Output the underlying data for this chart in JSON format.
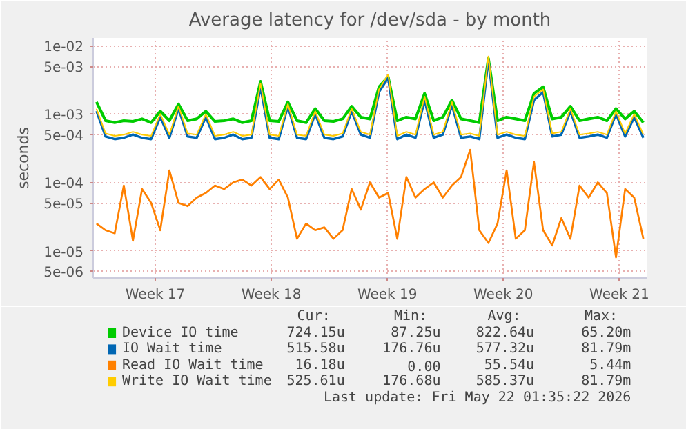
{
  "chart_data": {
    "type": "line",
    "title": "Average latency for /dev/sda - by month",
    "ylabel": "seconds",
    "log": "y",
    "grid": true,
    "legend": "bottom",
    "marker": "none",
    "line_style": "solid",
    "xlim": [
      "2026-04-19T18:00",
      "2026-05-23T03:36"
    ],
    "ylim": [
      4e-06,
      0.013
    ],
    "xticks": [
      {
        "value": "2026-04-23T12:00",
        "label": "Week 17"
      },
      {
        "value": "2026-04-30T12:00",
        "label": "Week 18"
      },
      {
        "value": "2026-05-07T12:00",
        "label": "Week 19"
      },
      {
        "value": "2026-05-14T12:00",
        "label": "Week 20"
      },
      {
        "value": "2026-05-21T12:00",
        "label": "Week 21"
      }
    ],
    "yticks": [
      {
        "value": 0.01,
        "label": "1e-02"
      },
      {
        "value": 0.005,
        "label": "5e-03"
      },
      {
        "value": 0.001,
        "label": "1e-03"
      },
      {
        "value": 0.0005,
        "label": "5e-04"
      },
      {
        "value": 0.0001,
        "label": "1e-04"
      },
      {
        "value": 5e-05,
        "label": "5e-05"
      },
      {
        "value": 1e-05,
        "label": "1e-05"
      },
      {
        "value": 5e-06,
        "label": "5e-06"
      }
    ],
    "x": [
      "2026-04-19T22:48",
      "2026-04-20T12:00",
      "2026-04-21T01:12",
      "2026-04-21T14:24",
      "2026-04-22T03:36",
      "2026-04-22T16:48",
      "2026-04-23T06:00",
      "2026-04-23T19:12",
      "2026-04-24T08:24",
      "2026-04-24T21:36",
      "2026-04-25T10:48",
      "2026-04-26T00:00",
      "2026-04-26T13:12",
      "2026-04-27T02:24",
      "2026-04-27T15:36",
      "2026-04-28T04:48",
      "2026-04-28T18:00",
      "2026-04-29T07:12",
      "2026-04-29T20:24",
      "2026-04-30T09:36",
      "2026-04-30T22:48",
      "2026-05-01T12:00",
      "2026-05-02T01:12",
      "2026-05-02T14:24",
      "2026-05-03T03:36",
      "2026-05-03T16:48",
      "2026-05-04T06:00",
      "2026-05-04T19:12",
      "2026-05-05T08:24",
      "2026-05-05T21:36",
      "2026-05-06T10:48",
      "2026-05-07T00:00",
      "2026-05-07T13:12",
      "2026-05-08T02:24",
      "2026-05-08T15:36",
      "2026-05-09T04:48",
      "2026-05-09T18:00",
      "2026-05-10T07:12",
      "2026-05-10T20:24",
      "2026-05-11T09:36",
      "2026-05-11T22:48",
      "2026-05-12T12:00",
      "2026-05-13T01:12",
      "2026-05-13T14:24",
      "2026-05-14T03:36",
      "2026-05-14T16:48",
      "2026-05-15T06:00",
      "2026-05-15T19:12",
      "2026-05-16T08:24",
      "2026-05-16T21:36",
      "2026-05-17T10:48",
      "2026-05-18T00:00",
      "2026-05-18T13:12",
      "2026-05-19T02:24",
      "2026-05-19T15:36",
      "2026-05-20T04:48",
      "2026-05-20T18:00",
      "2026-05-21T07:12",
      "2026-05-21T20:24",
      "2026-05-22T09:36",
      "2026-05-22T22:48"
    ],
    "series": [
      {
        "name": "Device IO time",
        "color": "#00cc00",
        "values": [
          0.0015,
          0.0008,
          0.00075,
          0.0008,
          0.00078,
          0.00085,
          0.00075,
          0.0011,
          0.0008,
          0.0014,
          0.0008,
          0.00085,
          0.0011,
          0.00078,
          0.0008,
          0.00085,
          0.00075,
          0.0008,
          0.003,
          0.0008,
          0.00078,
          0.0015,
          0.0008,
          0.00075,
          0.0012,
          0.0008,
          0.00078,
          0.00085,
          0.0013,
          0.0009,
          0.00085,
          0.0025,
          0.0035,
          0.0008,
          0.0009,
          0.00085,
          0.002,
          0.0008,
          0.0009,
          0.0016,
          0.00085,
          0.0008,
          0.00075,
          0.0065,
          0.0008,
          0.0009,
          0.00085,
          0.0008,
          0.002,
          0.0025,
          0.00085,
          0.0009,
          0.0013,
          0.0008,
          0.00085,
          0.0009,
          0.0008,
          0.0012,
          0.00085,
          0.0011,
          0.00075
        ]
      },
      {
        "name": "IO Wait time",
        "color": "#0066b3",
        "values": [
          0.0011,
          0.00047,
          0.00043,
          0.00045,
          0.0005,
          0.00045,
          0.00043,
          0.0009,
          0.00045,
          0.0012,
          0.00047,
          0.00045,
          0.0009,
          0.00043,
          0.00045,
          0.0005,
          0.00043,
          0.00045,
          0.0025,
          0.00045,
          0.00043,
          0.0013,
          0.00045,
          0.00043,
          0.001,
          0.00045,
          0.00043,
          0.00047,
          0.0011,
          0.0005,
          0.00045,
          0.0021,
          0.0034,
          0.00043,
          0.0005,
          0.00045,
          0.0016,
          0.00045,
          0.0005,
          0.00135,
          0.00045,
          0.00047,
          0.00043,
          0.0063,
          0.00045,
          0.0005,
          0.00045,
          0.00043,
          0.0016,
          0.0021,
          0.00047,
          0.0005,
          0.0011,
          0.00045,
          0.00047,
          0.0005,
          0.00045,
          0.001,
          0.00047,
          0.0009,
          0.00045
        ]
      },
      {
        "name": "Read IO Wait time",
        "color": "#ff8000",
        "values": [
          2.5e-05,
          2e-05,
          1.8e-05,
          9e-05,
          1.4e-05,
          8e-05,
          5e-05,
          2e-05,
          0.00015,
          5e-05,
          4.5e-05,
          6e-05,
          7e-05,
          9e-05,
          8e-05,
          0.0001,
          0.00011,
          9e-05,
          0.00012,
          8e-05,
          0.00011,
          6e-05,
          1.5e-05,
          2.5e-05,
          2e-05,
          2.2e-05,
          1.5e-05,
          2e-05,
          8e-05,
          4e-05,
          0.0001,
          6e-05,
          7e-05,
          1.5e-05,
          0.00012,
          6e-05,
          8e-05,
          0.0001,
          6e-05,
          9e-05,
          0.00012,
          0.0003,
          2e-05,
          1.3e-05,
          2.5e-05,
          0.00015,
          1.5e-05,
          2e-05,
          0.0002,
          2e-05,
          1.2e-05,
          3e-05,
          1.5e-05,
          9e-05,
          6e-05,
          0.0001,
          7e-05,
          8e-06,
          8e-05,
          6e-05,
          1.5e-05
        ]
      },
      {
        "name": "Write IO Wait time",
        "color": "#ffcc00",
        "values": [
          0.0012,
          0.00052,
          0.00048,
          0.0005,
          0.00055,
          0.0005,
          0.00048,
          0.001,
          0.0005,
          0.0013,
          0.00052,
          0.0005,
          0.001,
          0.00048,
          0.0005,
          0.00055,
          0.00048,
          0.0005,
          0.0028,
          0.0005,
          0.00048,
          0.0014,
          0.0005,
          0.00048,
          0.0011,
          0.0005,
          0.00048,
          0.00052,
          0.0012,
          0.00055,
          0.0005,
          0.0023,
          0.0038,
          0.00048,
          0.00055,
          0.0005,
          0.0018,
          0.0005,
          0.00055,
          0.0015,
          0.0005,
          0.00052,
          0.00048,
          0.007,
          0.0005,
          0.00055,
          0.0005,
          0.00048,
          0.0018,
          0.0023,
          0.00052,
          0.00055,
          0.0012,
          0.0005,
          0.00052,
          0.00055,
          0.0005,
          0.0011,
          0.00052,
          0.001,
          0.0005
        ]
      }
    ],
    "annotations": [
      "Cur:",
      "Min:",
      "Avg:",
      "Max:",
      "724.15u",
      "87.25u",
      "822.64u",
      "65.20m",
      "515.58u",
      "176.76u",
      "577.32u",
      "81.79m",
      "16.18u",
      "0.00",
      "55.54u",
      "5.44m",
      "525.61u",
      "176.68u",
      "585.37u",
      "81.79m",
      "Last update: Fri May 22 01:35:22 2026"
    ]
  }
}
